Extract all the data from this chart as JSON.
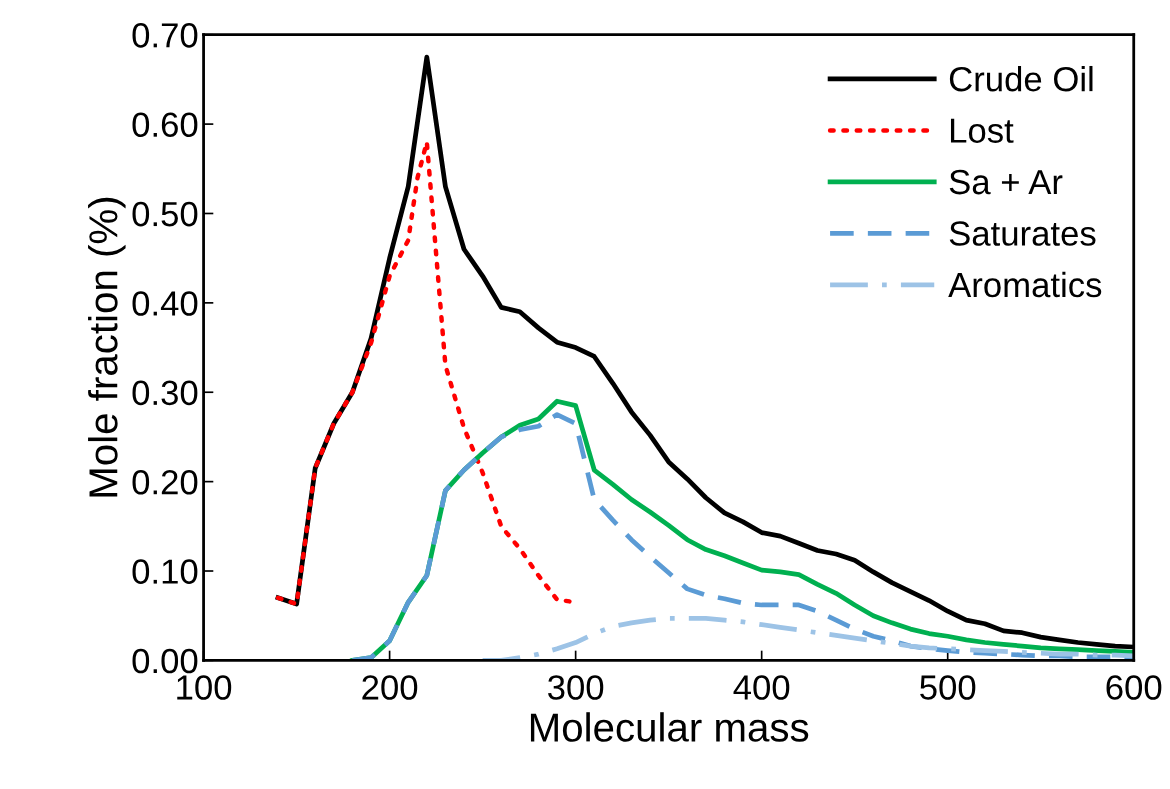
{
  "chart_data": {
    "type": "line",
    "xlabel": "Molecular mass",
    "ylabel": "Mole fraction (%)",
    "xlim": [
      100,
      600
    ],
    "xticks": [
      100,
      200,
      300,
      400,
      500,
      600
    ],
    "ylim": [
      0,
      0.7
    ],
    "yticks": [
      {
        "value": 0,
        "label": "0.00"
      },
      {
        "value": 0.1,
        "label": "0.10"
      },
      {
        "value": 0.2,
        "label": "0.20"
      },
      {
        "value": 0.3,
        "label": "0.30"
      },
      {
        "value": 0.4,
        "label": "0.40"
      },
      {
        "value": 0.5,
        "label": "0.50"
      },
      {
        "value": 0.6,
        "label": "0.60"
      },
      {
        "value": 0.7,
        "label": "0.70"
      }
    ],
    "grid": false,
    "legend": "top right",
    "marker": "none",
    "series": [
      {
        "name": "Crude Oil",
        "color": "#000000",
        "line_style": "solid",
        "x": [
          140,
          150,
          160,
          170,
          180,
          190,
          200,
          210,
          220,
          230,
          240,
          250,
          260,
          270,
          280,
          290,
          300,
          310,
          320,
          330,
          340,
          350,
          360,
          370,
          380,
          390,
          400,
          410,
          420,
          430,
          440,
          450,
          460,
          470,
          480,
          490,
          500,
          510,
          520,
          530,
          540,
          550,
          560,
          570,
          580,
          590,
          600
        ],
        "values": [
          0.07,
          0.063,
          0.215,
          0.265,
          0.3,
          0.36,
          0.45,
          0.53,
          0.675,
          0.53,
          0.46,
          0.43,
          0.395,
          0.39,
          0.372,
          0.356,
          0.35,
          0.34,
          0.31,
          0.278,
          0.252,
          0.222,
          0.203,
          0.182,
          0.165,
          0.155,
          0.143,
          0.139,
          0.131,
          0.123,
          0.119,
          0.112,
          0.099,
          0.087,
          0.077,
          0.067,
          0.055,
          0.045,
          0.041,
          0.033,
          0.031,
          0.026,
          0.023,
          0.02,
          0.018,
          0.016,
          0.015
        ]
      },
      {
        "name": "Lost",
        "color": "#ff0000",
        "line_style": "dotted",
        "x": [
          140,
          150,
          160,
          170,
          180,
          190,
          200,
          210,
          215,
          220,
          230,
          240,
          250,
          260,
          270,
          280,
          290,
          300
        ],
        "values": [
          0.07,
          0.063,
          0.215,
          0.265,
          0.3,
          0.355,
          0.43,
          0.47,
          0.54,
          0.58,
          0.33,
          0.26,
          0.21,
          0.15,
          0.125,
          0.095,
          0.068,
          0.065
        ]
      },
      {
        "name": "Sa + Ar",
        "color": "#00b050",
        "line_style": "solid",
        "x": [
          180,
          190,
          200,
          210,
          220,
          230,
          240,
          250,
          260,
          270,
          280,
          290,
          300,
          310,
          320,
          330,
          340,
          350,
          360,
          370,
          380,
          390,
          400,
          410,
          420,
          430,
          440,
          450,
          460,
          470,
          480,
          490,
          500,
          510,
          520,
          530,
          540,
          550,
          560,
          570,
          580,
          590,
          600
        ],
        "values": [
          0.0,
          0.003,
          0.022,
          0.065,
          0.095,
          0.19,
          0.213,
          0.232,
          0.25,
          0.263,
          0.27,
          0.29,
          0.285,
          0.213,
          0.197,
          0.18,
          0.166,
          0.151,
          0.135,
          0.124,
          0.117,
          0.109,
          0.101,
          0.099,
          0.096,
          0.085,
          0.075,
          0.062,
          0.05,
          0.042,
          0.035,
          0.03,
          0.027,
          0.023,
          0.02,
          0.018,
          0.016,
          0.014,
          0.013,
          0.012,
          0.011,
          0.01,
          0.009
        ]
      },
      {
        "name": "Saturates",
        "color": "#5b9bd5",
        "line_style": "dashed",
        "x": [
          180,
          190,
          200,
          210,
          220,
          230,
          240,
          250,
          260,
          270,
          280,
          290,
          300,
          310,
          320,
          330,
          340,
          350,
          360,
          370,
          380,
          390,
          400,
          410,
          420,
          430,
          440,
          450,
          460,
          470,
          480,
          490,
          500,
          510,
          520,
          530,
          540,
          550,
          560,
          570,
          580,
          590,
          600
        ],
        "values": [
          0.0,
          0.003,
          0.022,
          0.065,
          0.095,
          0.19,
          0.213,
          0.232,
          0.25,
          0.258,
          0.262,
          0.275,
          0.265,
          0.18,
          0.157,
          0.135,
          0.116,
          0.098,
          0.08,
          0.073,
          0.069,
          0.064,
          0.062,
          0.062,
          0.062,
          0.055,
          0.045,
          0.035,
          0.027,
          0.022,
          0.016,
          0.013,
          0.011,
          0.009,
          0.008,
          0.007,
          0.006,
          0.005,
          0.005,
          0.004,
          0.004,
          0.004,
          0.003
        ]
      },
      {
        "name": "Aromatics",
        "color": "#9dc3e6",
        "line_style": "dashdot",
        "x": [
          250,
          260,
          270,
          280,
          290,
          300,
          310,
          320,
          330,
          340,
          350,
          360,
          370,
          380,
          390,
          400,
          410,
          420,
          430,
          440,
          450,
          460,
          470,
          480,
          490,
          500,
          510,
          520,
          530,
          540,
          550,
          560,
          570,
          580,
          590,
          600
        ],
        "values": [
          0.0,
          0.0,
          0.003,
          0.007,
          0.013,
          0.02,
          0.03,
          0.038,
          0.042,
          0.045,
          0.047,
          0.047,
          0.047,
          0.045,
          0.043,
          0.04,
          0.037,
          0.034,
          0.031,
          0.028,
          0.025,
          0.022,
          0.019,
          0.016,
          0.014,
          0.013,
          0.012,
          0.011,
          0.01,
          0.009,
          0.008,
          0.007,
          0.007,
          0.006,
          0.006,
          0.005
        ]
      }
    ]
  }
}
